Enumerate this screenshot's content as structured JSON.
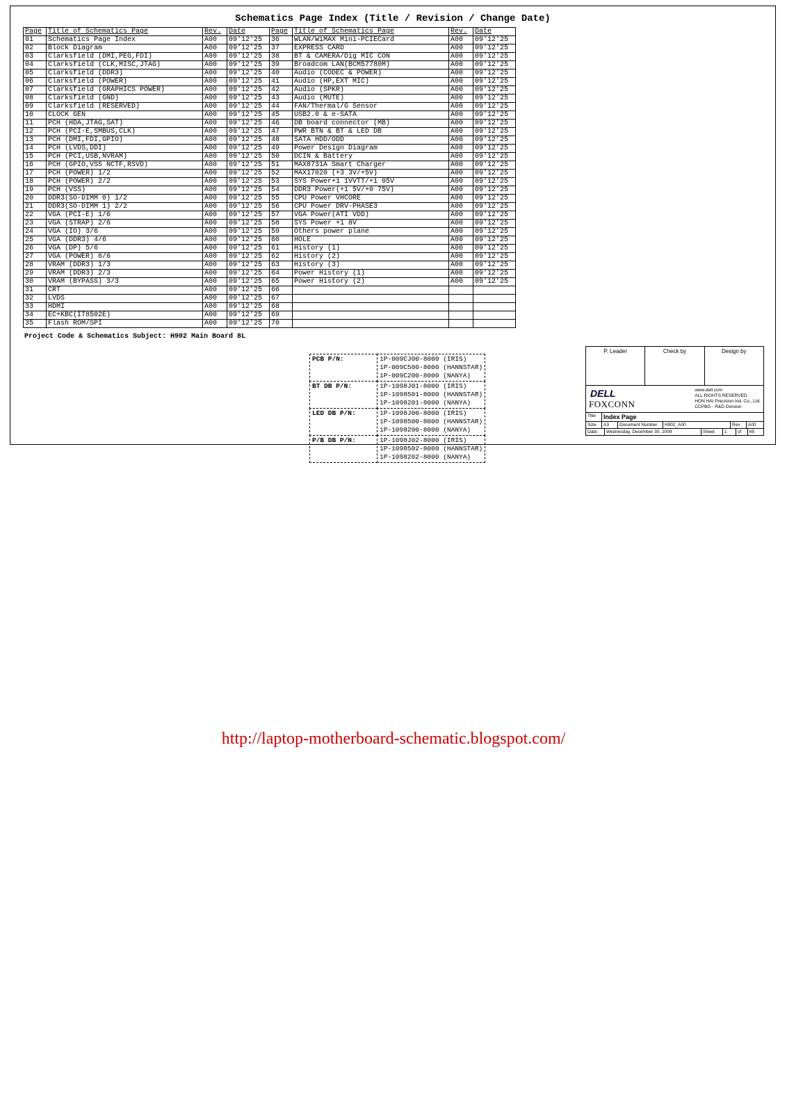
{
  "header_title": "Schematics Page Index (Title / Revision / Change Date)",
  "columns": {
    "page": "Page",
    "title": "Title of Schematics Page",
    "rev": "Rev.",
    "date": "Date",
    "page2": "Page",
    "title2": "Title of Schematics Page",
    "rev2": "Rev.",
    "date2": "Date"
  },
  "rows": [
    {
      "p": "01",
      "t": "Schematics Page Index",
      "r": "A00",
      "d": "09'12'25",
      "p2": "36",
      "t2": "WLAN/WiMAX Mini-PCIECard",
      "r2": "A00",
      "d2": "09'12'25"
    },
    {
      "p": "02",
      "t": "Block Diagram",
      "r": "A00",
      "d": "09'12'25",
      "p2": "37",
      "t2": "EXPRESS CARD",
      "r2": "A00",
      "d2": "09'12'25"
    },
    {
      "p": "03",
      "t": "Clarksfield (DMI,PEG,FDI)",
      "r": "A00",
      "d": "09'12'25",
      "p2": "38",
      "t2": "BT & CAMERA/Dig MIC CON",
      "r2": "A00",
      "d2": "09'12'25"
    },
    {
      "p": "04",
      "t": "Clarksfield (CLK,MISC,JTAG)",
      "r": "A00",
      "d": "09'12'25",
      "p2": "39",
      "t2": "Broadcom LAN(BCM57780M)",
      "r2": "A00",
      "d2": "09'12'25"
    },
    {
      "p": "05",
      "t": "Clarksfield (DDR3)",
      "r": "A00",
      "d": "09'12'25",
      "p2": "40",
      "t2": "Audio (CODEC & POWER)",
      "r2": "A00",
      "d2": "09'12'25"
    },
    {
      "p": "06",
      "t": "Clarksfield (POWER)",
      "r": "A00",
      "d": "09'12'25",
      "p2": "41",
      "t2": "Audio (HP,EXT MIC)",
      "r2": "A00",
      "d2": "09'12'25"
    },
    {
      "p": "07",
      "t": "Clarksfield (GRAPHICS POWER)",
      "r": "A00",
      "d": "09'12'25",
      "p2": "42",
      "t2": "Audio (SPKR)",
      "r2": "A00",
      "d2": "09'12'25"
    },
    {
      "p": "08",
      "t": "Clarksfield (GND)",
      "r": "A00",
      "d": "09'12'25",
      "p2": "43",
      "t2": "Audio (MUTE)",
      "r2": "A00",
      "d2": "09'12'25"
    },
    {
      "p": "09",
      "t": "Clarksfield (RESERVED)",
      "r": "A00",
      "d": "09'12'25",
      "p2": "44",
      "t2": "FAN/Thermal/G Sensor",
      "r2": "A00",
      "d2": "09'12'25"
    },
    {
      "p": "10",
      "t": "CLOCK GEN",
      "r": "A00",
      "d": "09'12'25",
      "p2": "45",
      "t2": "USB2.0 & e-SATA",
      "r2": "A00",
      "d2": "09'12'25"
    },
    {
      "p": "11",
      "t": "PCH (HDA,JTAG,SAT)",
      "r": "A00",
      "d": "09'12'25",
      "p2": "46",
      "t2": "DB board connector (MB)",
      "r2": "A00",
      "d2": "09'12'25"
    },
    {
      "p": "12",
      "t": "PCH (PCI-E,SMBUS,CLK)",
      "r": "A00",
      "d": "09'12'25",
      "p2": "47",
      "t2": "PWR BTN & BT & LED DB",
      "r2": "A00",
      "d2": "09'12'25"
    },
    {
      "p": "13",
      "t": "PCH (DMI,FDI,GPIO)",
      "r": "A00",
      "d": "09'12'25",
      "p2": "48",
      "t2": "SATA HDD/ODD",
      "r2": "A00",
      "d2": "09'12'25"
    },
    {
      "p": "14",
      "t": "PCH (LVDS,DDI)",
      "r": "A00",
      "d": "09'12'25",
      "p2": "49",
      "t2": "Power Design Diagram",
      "r2": "A00",
      "d2": "09'12'25"
    },
    {
      "p": "15",
      "t": "PCH (PCI,USB,NVRAM)",
      "r": "A00",
      "d": "09'12'25",
      "p2": "50",
      "t2": "DCIN & Battery",
      "r2": "A00",
      "d2": "09'12'25"
    },
    {
      "p": "16",
      "t": "PCH (GPIO,VSS NCTF,RSVD)",
      "r": "A00",
      "d": "09'12'25",
      "p2": "51",
      "t2": "MAX8731A Smart Charger",
      "r2": "A00",
      "d2": "09'12'25"
    },
    {
      "p": "17",
      "t": "PCH (POWER) 1/2",
      "r": "A00",
      "d": "09'12'25",
      "p2": "52",
      "t2": "MAX17020 (+3 3V/+5V)",
      "r2": "A00",
      "d2": "09'12'25"
    },
    {
      "p": "18",
      "t": "PCH (POWER) 2/2",
      "r": "A00",
      "d": "09'12'25",
      "p2": "53",
      "t2": "SYS Power+1 1VVTT/+1 05V",
      "r2": "A00",
      "d2": "09'12'25"
    },
    {
      "p": "19",
      "t": "PCH (VSS)",
      "r": "A00",
      "d": "09'12'25",
      "p2": "54",
      "t2": "DDR3 Power(+1 5V/+0 75V)",
      "r2": "A00",
      "d2": "09'12'25"
    },
    {
      "p": "20",
      "t": "DDR3(SO-DIMM 0) 1/2",
      "r": "A00",
      "d": "09'12'25",
      "p2": "55",
      "t2": "CPU Power VHCORE",
      "r2": "A00",
      "d2": "09'12'25"
    },
    {
      "p": "21",
      "t": "DDR3(SO-DIMM 1) 2/2",
      "r": "A00",
      "d": "09'12'25",
      "p2": "56",
      "t2": "CPU Power DRV-PHASE3",
      "r2": "A00",
      "d2": "09'12'25"
    },
    {
      "p": "22",
      "t": "VGA (PCI-E) 1/6",
      "r": "A00",
      "d": "09'12'25",
      "p2": "57",
      "t2": "VGA  Power(ATI VDD)",
      "r2": "A00",
      "d2": "09'12'25"
    },
    {
      "p": "23",
      "t": "VGA (STRAP) 2/6",
      "r": "A00",
      "d": "09'12'25",
      "p2": "58",
      "t2": "SYS Power +1 8V",
      "r2": "A00",
      "d2": "09'12'25"
    },
    {
      "p": "24",
      "t": "VGA (IO) 3/6",
      "r": "A00",
      "d": "09'12'25",
      "p2": "59",
      "t2": "Others power plane",
      "r2": "A00",
      "d2": "09'12'25"
    },
    {
      "p": "25",
      "t": "VGA (DDR3) 4/6",
      "r": "A00",
      "d": "09'12'25",
      "p2": "60",
      "t2": "HOLE",
      "r2": "A00",
      "d2": "09'12'25"
    },
    {
      "p": "26",
      "t": "VGA (DP) 5/6",
      "r": "A00",
      "d": "09'12'25",
      "p2": "61",
      "t2": "History (1)",
      "r2": "A00",
      "d2": "09'12'25"
    },
    {
      "p": "27",
      "t": "VGA (POWER) 6/6",
      "r": "A00",
      "d": "09'12'25",
      "p2": "62",
      "t2": "History (2)",
      "r2": "A00",
      "d2": "09'12'25"
    },
    {
      "p": "28",
      "t": "VRAM (DDR3) 1/3",
      "r": "A00",
      "d": "09'12'25",
      "p2": "63",
      "t2": "History (3)",
      "r2": "A00",
      "d2": "09'12'25"
    },
    {
      "p": "29",
      "t": "VRAM (DDR3) 2/3",
      "r": "A00",
      "d": "09'12'25",
      "p2": "64",
      "t2": "Power History (1)",
      "r2": "A00",
      "d2": "09'12'25"
    },
    {
      "p": "30",
      "t": "VRAM (BYPASS) 3/3",
      "r": "A00",
      "d": "09'12'25",
      "p2": "65",
      "t2": "Power History (2)",
      "r2": "A00",
      "d2": "09'12'25"
    },
    {
      "p": "31",
      "t": "CRT",
      "r": "A00",
      "d": "09'12'25",
      "p2": "66",
      "t2": "",
      "r2": "",
      "d2": ""
    },
    {
      "p": "32",
      "t": "LVDS",
      "r": "A00",
      "d": "09'12'25",
      "p2": "67",
      "t2": "",
      "r2": "",
      "d2": ""
    },
    {
      "p": "33",
      "t": "HDMI",
      "r": "A00",
      "d": "09'12'25",
      "p2": "68",
      "t2": "",
      "r2": "",
      "d2": ""
    },
    {
      "p": "34",
      "t": "EC+KBC(IT8502E)",
      "r": "A00",
      "d": "09'12'25",
      "p2": "69",
      "t2": "",
      "r2": "",
      "d2": ""
    },
    {
      "p": "35",
      "t": "Flash ROM/SPI",
      "r": "A00",
      "d": "09'12'25",
      "p2": "70",
      "t2": "",
      "r2": "",
      "d2": ""
    }
  ],
  "project_line": "Project Code & Schematics Subject:  H902 Main Board 8L",
  "pn_block": [
    {
      "label": "PCB P/N:",
      "values": "1P-009CJ00-8000 (IRIS)\n1P-009C500-8000 (HANNSTAR)\n1P-009C200-8000 (NANYA)"
    },
    {
      "label": "BT DB P/N:",
      "values": "1P-1098J01-8000 (IRIS)\n1P-1098501-8000 (HANNSTAR)\n1P-1098201-8000 (NANYA)"
    },
    {
      "label": "LED DB P/N:",
      "values": "1P-1098J00-8000 (IRIS)\n1P-1098500-8000 (HANNSTAR)\n1P-1098200-8000 (NANYA)"
    },
    {
      "label": "P/B DB P/N:",
      "values": "1P-1098J02-8000 (IRIS)\n1P-1098502-8000 (HANNSTAR)\n1P-1098202-8000 (NANYA)"
    }
  ],
  "title_block": {
    "top_labels": [
      "P. Leader",
      "Check by",
      "Design by"
    ],
    "dell": "DELL",
    "foxconn": "FOXCONN",
    "rights": "www.dell.com\nALL RIGHTS RESERVED\nHON HAI Precision Ind. Co., Ltd.\nCCPBG - R&D Division",
    "title_label": "Title",
    "title_value": "Index Page",
    "size_label": "Size",
    "size_value": "A3",
    "doc_label": "Document Number",
    "doc_value": "H902_A00",
    "rev_label": "Rev",
    "rev_value": "A00",
    "date_label": "Date:",
    "date_value": "Wednesday, December 30, 2009",
    "sheet_label": "Sheet",
    "sheet_value": "1",
    "of_label": "of",
    "of_value": "65"
  },
  "footer_link": "http://laptop-motherboard-schematic.blogspot.com/"
}
